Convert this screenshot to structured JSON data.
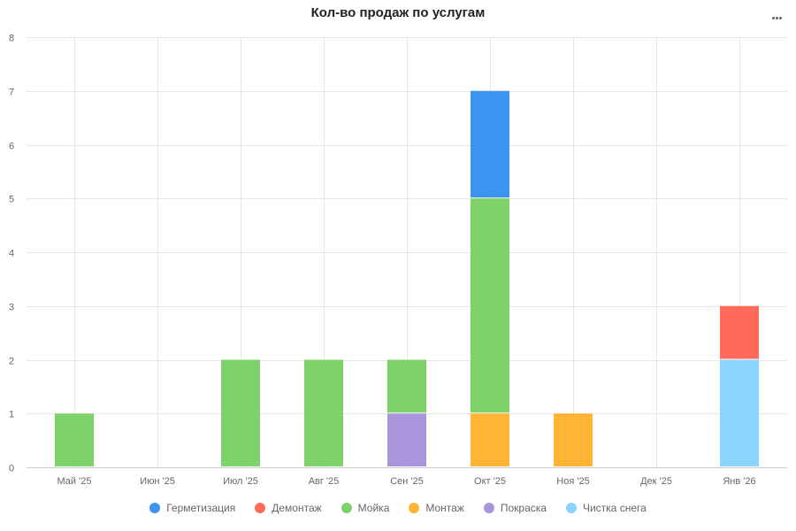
{
  "chart_data": {
    "type": "bar",
    "stacked": true,
    "title": "Кол-во продаж по услугам",
    "categories": [
      "Май '25",
      "Июн '25",
      "Июл '25",
      "Авг '25",
      "Сен '25",
      "Окт '25",
      "Ноя '25",
      "Дек '25",
      "Янв '26"
    ],
    "y_ticks": [
      "0",
      "1",
      "2",
      "3",
      "4",
      "5",
      "6",
      "7",
      "8"
    ],
    "ylim": [
      0,
      8
    ],
    "grid": true,
    "legend_position": "bottom",
    "series": [
      {
        "name": "Чистка снега",
        "color": "#8ad4fd",
        "values": [
          0,
          0,
          0,
          0,
          0,
          0,
          0,
          0,
          2
        ]
      },
      {
        "name": "Монтаж",
        "color": "#ffb433",
        "values": [
          0,
          0,
          0,
          0,
          0,
          1,
          1,
          0,
          0
        ]
      },
      {
        "name": "Покраска",
        "color": "#aa95dd",
        "values": [
          0,
          0,
          0,
          0,
          1,
          0,
          0,
          0,
          0
        ]
      },
      {
        "name": "Мойка",
        "color": "#7dd36a",
        "values": [
          1,
          0,
          2,
          2,
          1,
          4,
          0,
          0,
          0
        ]
      },
      {
        "name": "Демонтаж",
        "color": "#ff6b5a",
        "values": [
          0,
          0,
          0,
          0,
          0,
          0,
          0,
          0,
          1
        ]
      },
      {
        "name": "Герметизация",
        "color": "#3b94f0",
        "values": [
          0,
          0,
          0,
          0,
          0,
          2,
          0,
          0,
          0
        ]
      }
    ]
  },
  "legend": [
    {
      "label": "Герметизация",
      "color": "#3b94f0"
    },
    {
      "label": "Демонтаж",
      "color": "#ff6b5a"
    },
    {
      "label": "Мойка",
      "color": "#7dd36a"
    },
    {
      "label": "Монтаж",
      "color": "#ffb433"
    },
    {
      "label": "Покраска",
      "color": "#aa95dd"
    },
    {
      "label": "Чистка снега",
      "color": "#8ad4fd"
    }
  ],
  "menu_icon": "more-horizontal-icon"
}
